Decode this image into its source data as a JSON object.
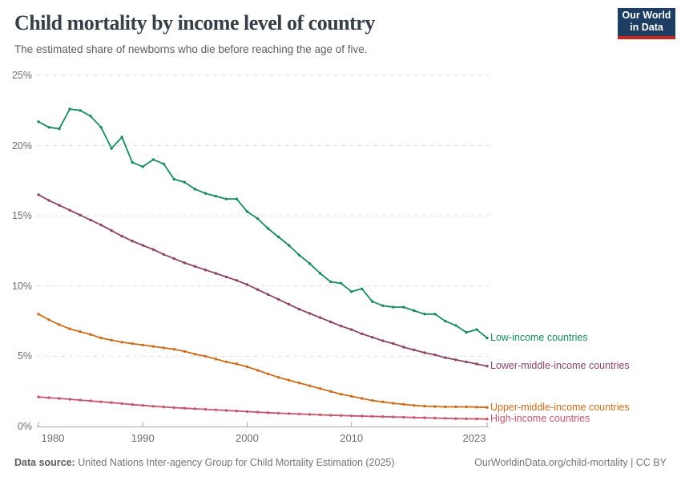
{
  "header": {
    "title": "Child mortality by income level of country",
    "subtitle": "The estimated share of newborns who die before reaching the age of five.",
    "logo": {
      "line1": "Our World",
      "line2": "in Data",
      "bg": "#1d3d63",
      "accent": "#ce261b"
    }
  },
  "chart_data": {
    "type": "line",
    "title": "Child mortality by income level of country",
    "subtitle": "The estimated share of newborns who die before reaching the age of five.",
    "unit": "%",
    "ylim": [
      0,
      25
    ],
    "grid": "horizontal-dashed",
    "legend_position": "right-of-line-ends",
    "years": [
      1980,
      1981,
      1982,
      1983,
      1984,
      1985,
      1986,
      1987,
      1988,
      1989,
      1990,
      1991,
      1992,
      1993,
      1994,
      1995,
      1996,
      1997,
      1998,
      1999,
      2000,
      2001,
      2002,
      2003,
      2004,
      2005,
      2006,
      2007,
      2008,
      2009,
      2010,
      2011,
      2012,
      2013,
      2014,
      2015,
      2016,
      2017,
      2018,
      2019,
      2020,
      2021,
      2022,
      2023
    ],
    "xticks": [
      {
        "year": 1980,
        "label": "1980"
      },
      {
        "year": 1990,
        "label": "1990"
      },
      {
        "year": 2000,
        "label": "2000"
      },
      {
        "year": 2010,
        "label": "2010"
      },
      {
        "year": 2023,
        "label": "2023"
      }
    ],
    "yticks": [
      {
        "value": 25,
        "label": "25%"
      },
      {
        "value": 20,
        "label": "20%"
      },
      {
        "value": 15,
        "label": "15%"
      },
      {
        "value": 10,
        "label": "10%"
      },
      {
        "value": 5,
        "label": "5%"
      },
      {
        "value": 0,
        "label": "0%"
      }
    ],
    "series": [
      {
        "name": "Low-income countries",
        "color": "#1a8a60",
        "values": [
          21.7,
          21.3,
          21.2,
          22.6,
          22.5,
          22.1,
          21.3,
          19.8,
          20.6,
          18.8,
          18.5,
          19.0,
          18.7,
          17.6,
          17.4,
          16.9,
          16.6,
          16.4,
          16.2,
          16.2,
          15.3,
          14.8,
          14.1,
          13.5,
          12.9,
          12.2,
          11.6,
          10.9,
          10.3,
          10.2,
          9.6,
          9.8,
          8.9,
          8.6,
          8.5,
          8.5,
          8.25,
          8.0,
          8.0,
          7.5,
          7.2,
          6.7,
          6.9,
          6.3
        ]
      },
      {
        "name": "Lower-middle-income countries",
        "color": "#8b4569",
        "values": [
          16.5,
          16.1,
          15.75,
          15.4,
          15.05,
          14.7,
          14.35,
          13.95,
          13.55,
          13.2,
          12.9,
          12.6,
          12.25,
          11.95,
          11.65,
          11.4,
          11.15,
          10.9,
          10.65,
          10.4,
          10.1,
          9.75,
          9.4,
          9.05,
          8.7,
          8.35,
          8.05,
          7.75,
          7.45,
          7.15,
          6.9,
          6.6,
          6.35,
          6.1,
          5.9,
          5.65,
          5.45,
          5.25,
          5.1,
          4.9,
          4.75,
          4.6,
          4.45,
          4.3
        ]
      },
      {
        "name": "Upper-middle-income countries",
        "color": "#cd6c1b",
        "values": [
          8.0,
          7.6,
          7.25,
          6.95,
          6.75,
          6.55,
          6.3,
          6.15,
          6.0,
          5.9,
          5.8,
          5.7,
          5.6,
          5.5,
          5.35,
          5.15,
          5.0,
          4.8,
          4.6,
          4.45,
          4.25,
          4.0,
          3.75,
          3.5,
          3.3,
          3.1,
          2.9,
          2.7,
          2.5,
          2.3,
          2.15,
          2.0,
          1.85,
          1.75,
          1.65,
          1.58,
          1.5,
          1.45,
          1.42,
          1.4,
          1.4,
          1.4,
          1.38,
          1.36
        ]
      },
      {
        "name": "High-income countries",
        "color": "#c6566c",
        "values": [
          2.1,
          2.05,
          2.0,
          1.94,
          1.88,
          1.82,
          1.76,
          1.7,
          1.63,
          1.56,
          1.5,
          1.44,
          1.39,
          1.34,
          1.3,
          1.26,
          1.22,
          1.18,
          1.14,
          1.1,
          1.06,
          1.02,
          0.98,
          0.95,
          0.92,
          0.89,
          0.86,
          0.83,
          0.8,
          0.78,
          0.76,
          0.74,
          0.72,
          0.7,
          0.68,
          0.66,
          0.64,
          0.62,
          0.6,
          0.58,
          0.56,
          0.55,
          0.54,
          0.53
        ]
      }
    ]
  },
  "footer": {
    "datasource_label": "Data source:",
    "datasource_text": "United Nations Inter-agency Group for Child Mortality Estimation (2025)",
    "credit": "OurWorldinData.org/child-mortality | CC BY"
  },
  "colors": {
    "title": "#363e47",
    "subtitle": "#5a5f63",
    "tick_label": "#6e6e6e",
    "grid": "#dedede",
    "axis": "#a3a3a3"
  }
}
